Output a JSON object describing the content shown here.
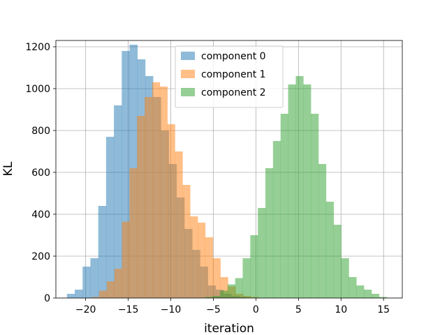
{
  "chart_data": {
    "type": "histogram",
    "xlabel": "iteration",
    "ylabel": "KL",
    "xlim": [
      -23.5,
      17.2
    ],
    "ylim": [
      0,
      1230
    ],
    "xticks": [
      -20,
      -15,
      -10,
      -5,
      0,
      5,
      10,
      15
    ],
    "yticks": [
      0,
      200,
      400,
      600,
      800,
      1000,
      1200
    ],
    "grid": true,
    "legend_position": "top-center",
    "bar_opacity": 0.5,
    "series": [
      {
        "name": "component 0",
        "color": "#1f77b4",
        "bin_start": -22.2,
        "bin_width": 0.92,
        "counts": [
          20,
          40,
          150,
          190,
          440,
          770,
          920,
          1180,
          1210,
          1140,
          1060,
          960,
          800,
          640,
          480,
          330,
          230,
          150,
          60,
          40,
          20,
          10,
          5
        ]
      },
      {
        "name": "component 1",
        "color": "#ff7f0e",
        "bin_start": -19.3,
        "bin_width": 0.89,
        "counts": [
          5,
          35,
          80,
          140,
          365,
          620,
          870,
          960,
          1030,
          1010,
          830,
          700,
          540,
          390,
          360,
          290,
          190,
          100,
          55,
          20,
          10,
          5
        ]
      },
      {
        "name": "component 2",
        "color": "#2ca02c",
        "bin_start": -6.0,
        "bin_width": 0.89,
        "counts": [
          5,
          10,
          35,
          65,
          95,
          190,
          300,
          430,
          620,
          750,
          880,
          1020,
          1060,
          1020,
          880,
          640,
          460,
          350,
          190,
          100,
          60,
          40,
          20,
          5
        ]
      }
    ]
  }
}
